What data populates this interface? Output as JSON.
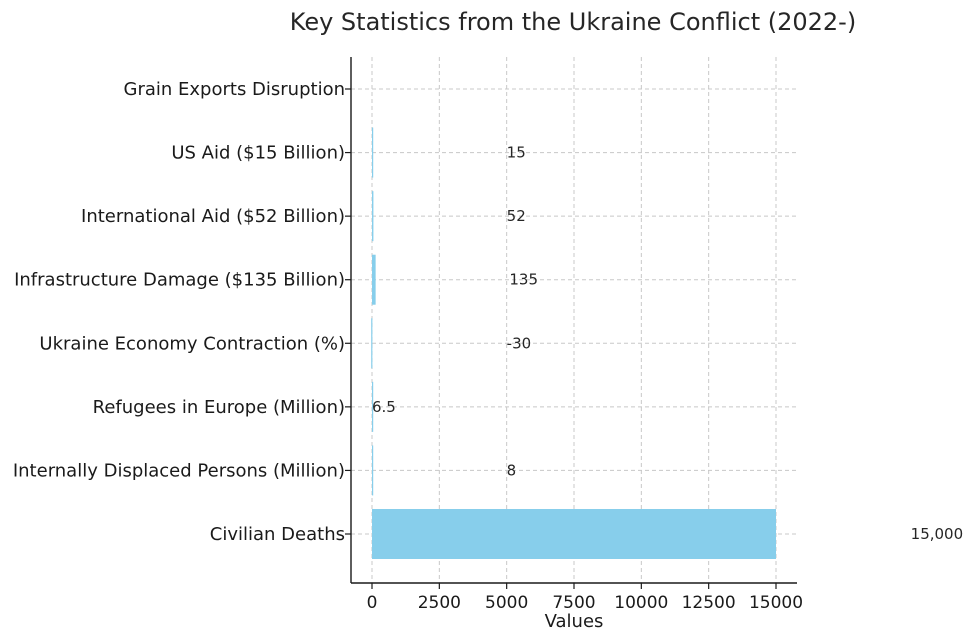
{
  "chart_data": {
    "type": "bar",
    "orientation": "horizontal",
    "title": "Key Statistics from the Ukraine Conflict (2022-)",
    "xlabel": "Values",
    "ylabel": "",
    "xlim": [
      -800,
      15800
    ],
    "xticks": [
      0,
      2500,
      5000,
      7500,
      10000,
      12500,
      15000
    ],
    "xtick_labels": [
      "0",
      "2500",
      "5000",
      "7500",
      "10000",
      "12500",
      "15000"
    ],
    "grid": true,
    "color": "#87ceeb",
    "categories": [
      "Civilian Deaths",
      "Internally Displaced Persons (Million)",
      "Refugees in Europe (Million)",
      "Ukraine Economy Contraction (%)",
      "Infrastructure Damage ($135 Billion)",
      "International Aid ($52 Billion)",
      "US Aid ($15 Billion)",
      "Grain Exports Disruption"
    ],
    "values": [
      15000,
      8,
      6.5,
      -30,
      135,
      52,
      15,
      null
    ],
    "data_labels": [
      "15,000",
      "8",
      "6.5",
      "-30",
      "135",
      "52",
      "15",
      ""
    ],
    "data_label_x": [
      20000,
      5000,
      0,
      5000,
      5100,
      5000,
      5000,
      null
    ]
  }
}
